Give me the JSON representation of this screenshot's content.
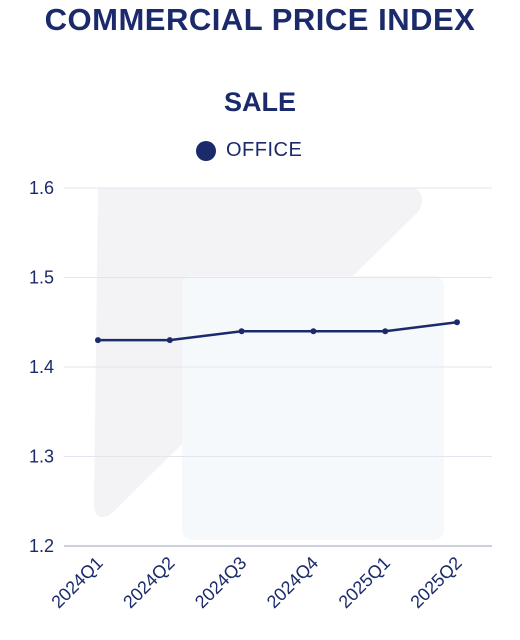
{
  "header": {
    "title": "COMMERCIAL PRICE INDEX"
  },
  "colors": {
    "series": "#1b2a6b",
    "grid": "#e3e5ee",
    "axis": "#9aa0b8",
    "text": "#1b2a6b"
  },
  "chart_data": {
    "type": "line",
    "title": "SALE",
    "xlabel": "",
    "ylabel": "",
    "categories": [
      "2024Q1",
      "2024Q2",
      "2024Q3",
      "2024Q4",
      "2025Q1",
      "2025Q2"
    ],
    "series": [
      {
        "name": "OFFICE",
        "values": [
          1.43,
          1.43,
          1.44,
          1.44,
          1.44,
          1.45
        ]
      }
    ],
    "ylim": [
      1.2,
      1.6
    ],
    "yticks": [
      "1.2",
      "1.3",
      "1.4",
      "1.5",
      "1.6"
    ],
    "grid": true,
    "legend": "top-center"
  }
}
